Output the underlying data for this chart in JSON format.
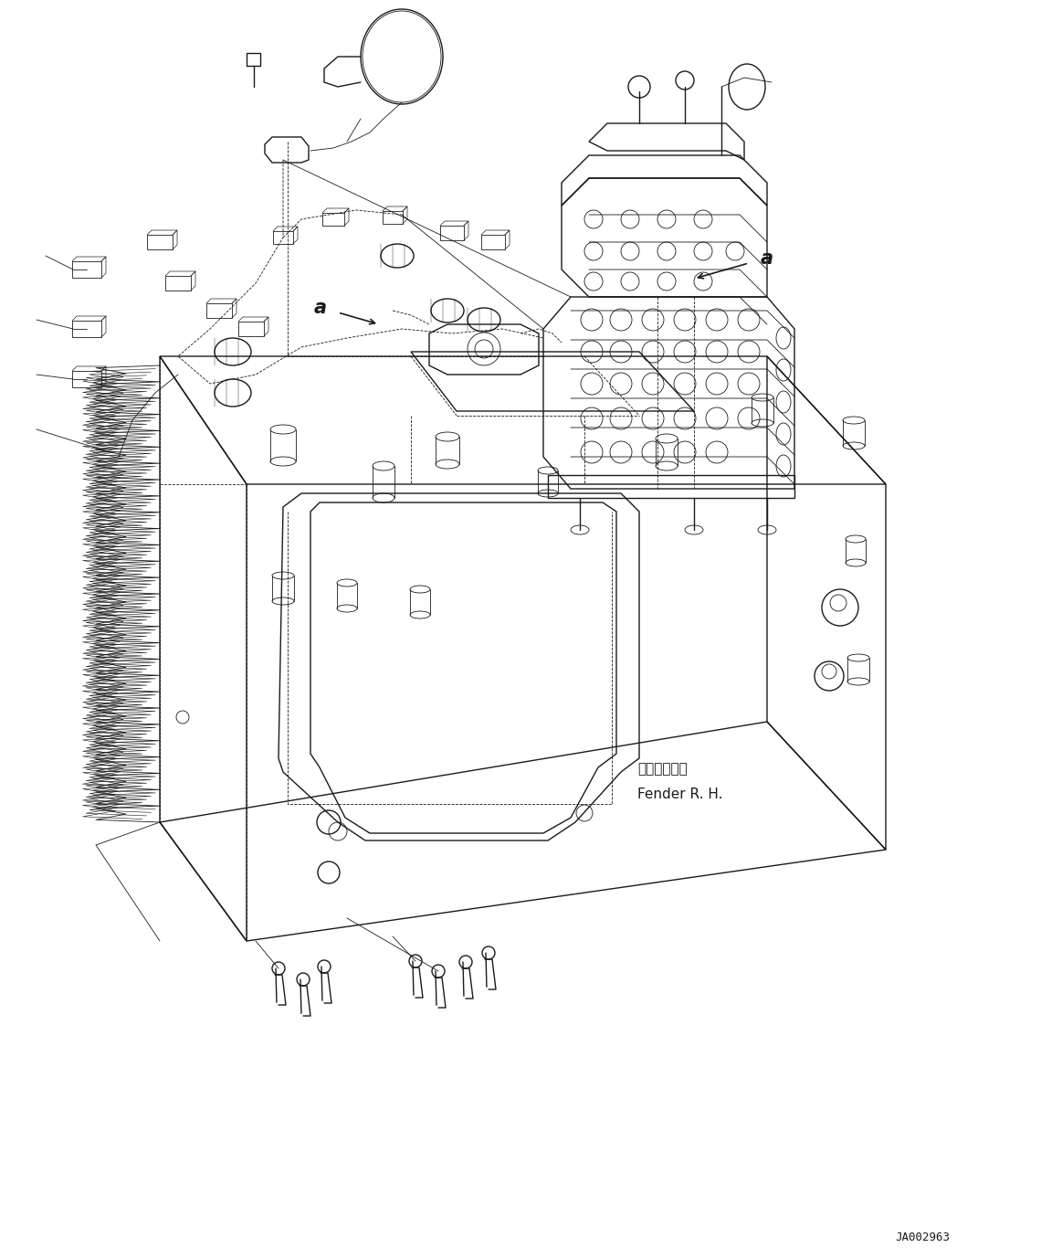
{
  "bg_color": "#ffffff",
  "line_color": "#1a1a1a",
  "label_fender_jp": "フェンダ　右",
  "label_fender_en": "Fender R. H.",
  "code": "JA002963",
  "fig_width": 11.63,
  "fig_height": 13.77,
  "dpi": 100,
  "lw_main": 1.0,
  "lw_thick": 1.3,
  "lw_thin": 0.6
}
